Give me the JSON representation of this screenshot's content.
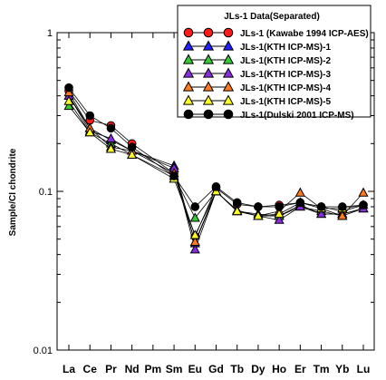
{
  "chart_data": {
    "type": "line",
    "legend_title": "JLs-1 Data(Separated)",
    "legend_position": "top-right",
    "xlabel": "",
    "ylabel": "Sample/CI chondrite",
    "y_scale": "log",
    "ylim": [
      0.01,
      1
    ],
    "y_ticks": [
      "0.01",
      "0.1",
      "1"
    ],
    "categories": [
      "La",
      "Ce",
      "Pr",
      "Nd",
      "Pm",
      "Sm",
      "Eu",
      "Gd",
      "Tb",
      "Dy",
      "Ho",
      "Er",
      "Tm",
      "Yb",
      "Lu"
    ],
    "series": [
      {
        "name": "JLs-1 (Kawabe 1994 ICP-AES)",
        "marker": "circle",
        "color": "#ff1a1a",
        "values": [
          0.43,
          0.28,
          0.26,
          0.2,
          null,
          0.13,
          0.052,
          0.105,
          0.083,
          0.08,
          0.082,
          0.085,
          0.08,
          0.075,
          0.082
        ]
      },
      {
        "name": "JLs-1(KTH ICP-MS)-1",
        "marker": "triangle",
        "color": "#1f1fff",
        "values": [
          0.4,
          0.25,
          0.21,
          0.18,
          null,
          0.145,
          0.047,
          0.1,
          0.075,
          0.072,
          0.07,
          0.082,
          0.072,
          0.072,
          0.078
        ]
      },
      {
        "name": "JLs-1(KTH ICP-MS)-2",
        "marker": "triangle",
        "color": "#33cc33",
        "values": [
          0.345,
          0.235,
          0.2,
          0.17,
          null,
          0.125,
          0.068,
          0.1,
          0.075,
          0.07,
          0.07,
          0.08,
          0.075,
          0.07,
          0.078
        ]
      },
      {
        "name": "JLs-1(KTH ICP-MS)-3",
        "marker": "triangle",
        "color": "#8a2be2",
        "values": [
          0.4,
          0.24,
          0.215,
          0.18,
          null,
          0.14,
          0.043,
          0.1,
          0.076,
          0.07,
          0.066,
          0.08,
          0.072,
          0.072,
          0.078
        ]
      },
      {
        "name": "JLs-1(KTH ICP-MS)-4",
        "marker": "triangle",
        "color": "#ff7a1a",
        "values": [
          0.42,
          0.25,
          0.19,
          0.18,
          null,
          0.13,
          0.048,
          0.1,
          0.075,
          0.07,
          0.075,
          0.098,
          0.078,
          0.07,
          0.098
        ]
      },
      {
        "name": "JLs-1(KTH ICP-MS)-5",
        "marker": "triangle",
        "color": "#ffff22",
        "values": [
          0.37,
          0.235,
          0.185,
          0.17,
          null,
          0.12,
          0.053,
          0.1,
          0.075,
          0.07,
          0.072,
          0.085,
          0.078,
          0.078,
          0.082
        ]
      },
      {
        "name": "JLs-1(Dulski 2001 ICP-MS)",
        "marker": "circle",
        "color": "#000000",
        "values": [
          0.45,
          0.3,
          0.25,
          0.19,
          null,
          0.125,
          0.08,
          0.107,
          0.085,
          0.08,
          0.08,
          0.085,
          0.08,
          0.08,
          0.082
        ]
      }
    ]
  }
}
